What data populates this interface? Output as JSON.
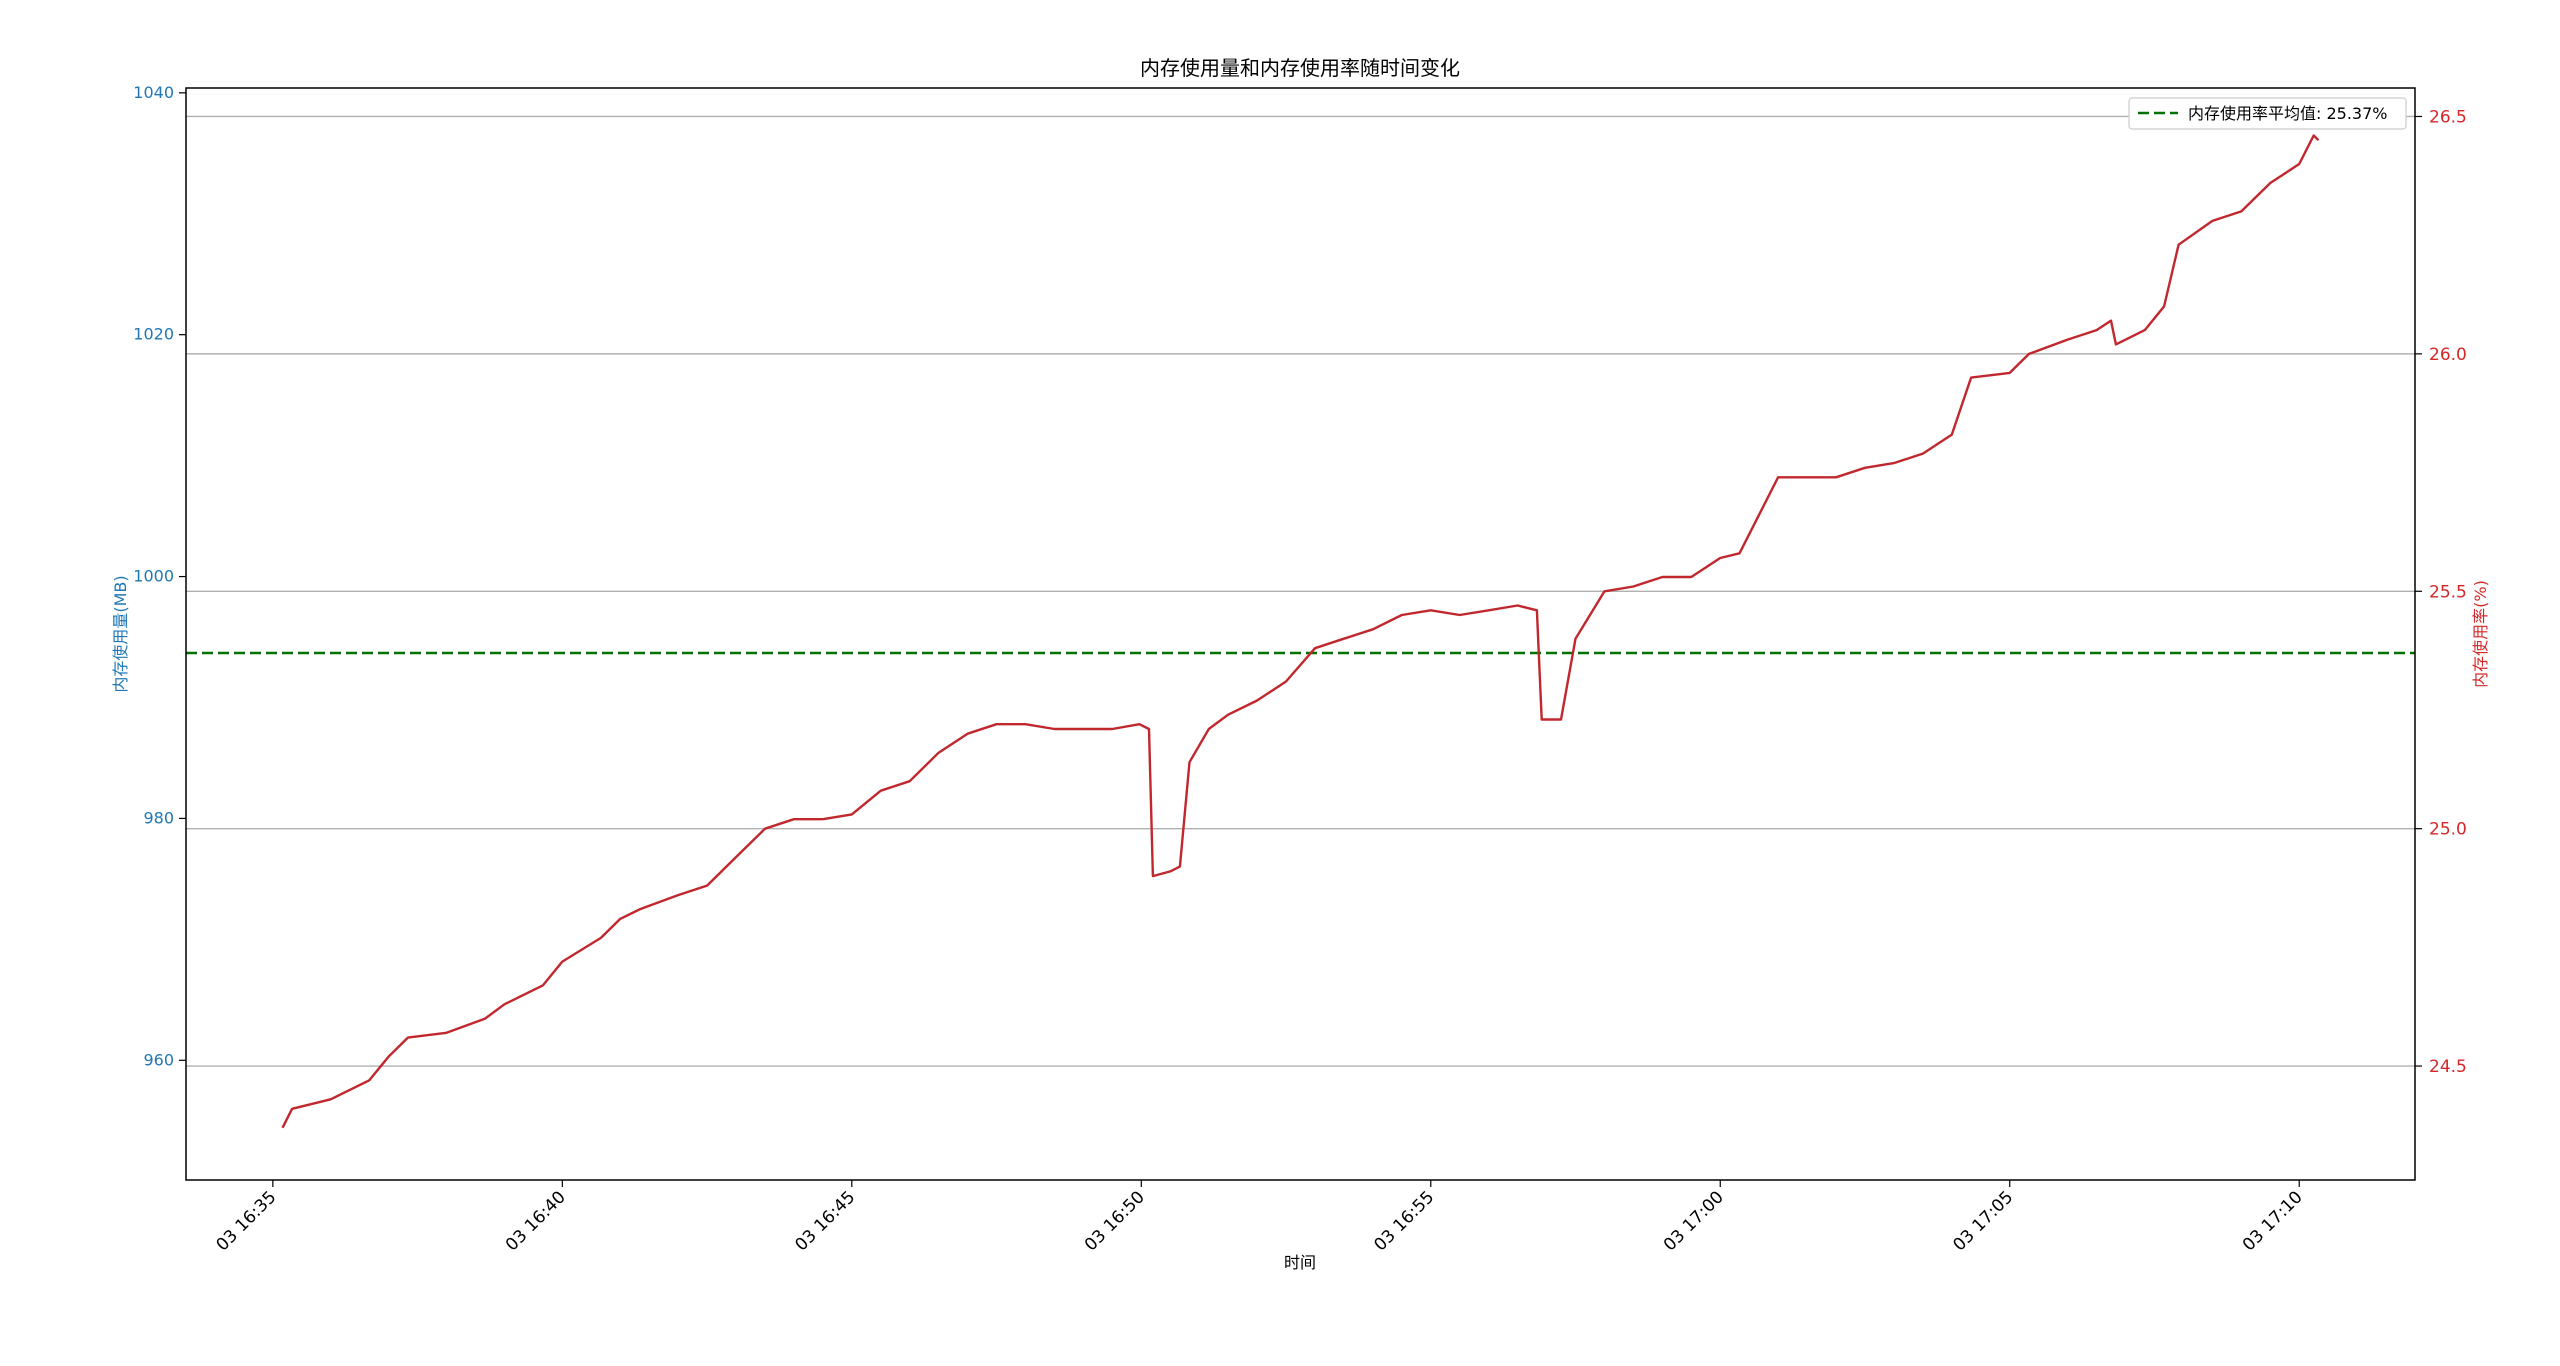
{
  "chart_data": {
    "type": "line",
    "title": "内存使用量和内存使用率随时间变化",
    "xlabel": "时间",
    "ylabel_left": "内存使用量(MB)",
    "ylabel_right": "内存使用率(%)",
    "x_tick_labels": [
      "03 16:35",
      "03 16:40",
      "03 16:45",
      "03 16:50",
      "03 16:55",
      "03 17:00",
      "03 17:05",
      "03 17:10"
    ],
    "x_range": [
      "03 16:33:30",
      "03 17:12:00"
    ],
    "y_left_ticks": [
      960,
      980,
      1000,
      1020,
      1040
    ],
    "y_left_range": [
      950.1,
      1040.4
    ],
    "y_right_ticks": [
      "24.5",
      "25.0",
      "25.5",
      "26.0",
      "26.5"
    ],
    "y_right_range": [
      24.26,
      26.56
    ],
    "grid": "horizontal, right axis",
    "colors": {
      "left_axis": "#1f77b4",
      "right_axis": "#d62728",
      "series": "#c0282e",
      "average": "#007000"
    },
    "average_line": {
      "label": "内存使用率平均值: 25.37%",
      "value": 25.37,
      "style": "dashed"
    },
    "legend": "top-right",
    "series": [
      {
        "axis": "right",
        "points": [
          [
            "16:35:10",
            24.37
          ],
          [
            "16:35:20",
            24.41
          ],
          [
            "16:36:00",
            24.43
          ],
          [
            "16:36:40",
            24.47
          ],
          [
            "16:37:00",
            24.52
          ],
          [
            "16:37:20",
            24.56
          ],
          [
            "16:38:00",
            24.57
          ],
          [
            "16:38:40",
            24.6
          ],
          [
            "16:39:00",
            24.63
          ],
          [
            "16:39:40",
            24.67
          ],
          [
            "16:40:00",
            24.72
          ],
          [
            "16:40:40",
            24.77
          ],
          [
            "16:41:00",
            24.81
          ],
          [
            "16:41:20",
            24.83
          ],
          [
            "16:42:00",
            24.86
          ],
          [
            "16:42:30",
            24.88
          ],
          [
            "16:43:00",
            24.94
          ],
          [
            "16:43:30",
            25.0
          ],
          [
            "16:44:00",
            25.02
          ],
          [
            "16:44:30",
            25.02
          ],
          [
            "16:45:00",
            25.03
          ],
          [
            "16:45:30",
            25.08
          ],
          [
            "16:46:00",
            25.1
          ],
          [
            "16:46:30",
            25.16
          ],
          [
            "16:47:00",
            25.2
          ],
          [
            "16:47:30",
            25.22
          ],
          [
            "16:48:00",
            25.22
          ],
          [
            "16:48:30",
            25.21
          ],
          [
            "16:49:00",
            25.21
          ],
          [
            "16:49:30",
            25.21
          ],
          [
            "16:49:58",
            25.22
          ],
          [
            "16:50:08",
            25.21
          ],
          [
            "16:50:12",
            24.9
          ],
          [
            "16:50:30",
            24.91
          ],
          [
            "16:50:40",
            24.92
          ],
          [
            "16:50:50",
            25.14
          ],
          [
            "16:51:10",
            25.21
          ],
          [
            "16:51:30",
            25.24
          ],
          [
            "16:52:00",
            25.27
          ],
          [
            "16:52:30",
            25.31
          ],
          [
            "16:53:00",
            25.38
          ],
          [
            "16:53:30",
            25.4
          ],
          [
            "16:54:00",
            25.42
          ],
          [
            "16:54:30",
            25.45
          ],
          [
            "16:55:00",
            25.46
          ],
          [
            "16:55:30",
            25.45
          ],
          [
            "16:56:00",
            25.46
          ],
          [
            "16:56:30",
            25.47
          ],
          [
            "16:56:50",
            25.46
          ],
          [
            "16:56:55",
            25.23
          ],
          [
            "16:57:15",
            25.23
          ],
          [
            "16:57:30",
            25.4
          ],
          [
            "16:57:45",
            25.45
          ],
          [
            "16:58:00",
            25.5
          ],
          [
            "16:58:30",
            25.51
          ],
          [
            "16:59:00",
            25.53
          ],
          [
            "16:59:30",
            25.53
          ],
          [
            "17:00:00",
            25.57
          ],
          [
            "17:00:20",
            25.58
          ],
          [
            "17:00:40",
            25.66
          ],
          [
            "17:01:00",
            25.74
          ],
          [
            "17:01:30",
            25.74
          ],
          [
            "17:02:00",
            25.74
          ],
          [
            "17:02:30",
            25.76
          ],
          [
            "17:03:00",
            25.77
          ],
          [
            "17:03:30",
            25.79
          ],
          [
            "17:04:00",
            25.83
          ],
          [
            "17:04:20",
            25.95
          ],
          [
            "17:05:00",
            25.96
          ],
          [
            "17:05:20",
            26.0
          ],
          [
            "17:06:00",
            26.03
          ],
          [
            "17:06:30",
            26.05
          ],
          [
            "17:06:45",
            26.07
          ],
          [
            "17:06:50",
            26.02
          ],
          [
            "17:07:20",
            26.05
          ],
          [
            "17:07:40",
            26.1
          ],
          [
            "17:07:55",
            26.23
          ],
          [
            "17:08:30",
            26.28
          ],
          [
            "17:09:00",
            26.3
          ],
          [
            "17:09:30",
            26.36
          ],
          [
            "17:10:00",
            26.4
          ],
          [
            "17:10:15",
            26.46
          ],
          [
            "17:10:20",
            26.45
          ]
        ]
      }
    ]
  }
}
